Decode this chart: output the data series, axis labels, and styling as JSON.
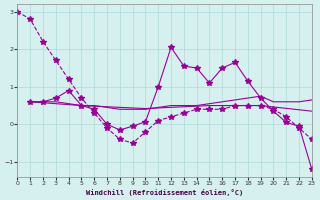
{
  "xlabel": "Windchill (Refroidissement éolien,°C)",
  "background_color": "#d6f0f0",
  "grid_color": "#b0d8d8",
  "line_color": "#990099",
  "xlim": [
    0,
    23
  ],
  "ylim": [
    -1.4,
    3.2
  ],
  "yticks": [
    -1,
    0,
    1,
    2,
    3
  ],
  "xticks": [
    0,
    1,
    2,
    3,
    4,
    5,
    6,
    7,
    8,
    9,
    10,
    11,
    12,
    13,
    14,
    15,
    16,
    17,
    18,
    19,
    20,
    21,
    22,
    23
  ],
  "series": [
    {
      "x": [
        0,
        1,
        2,
        3,
        4,
        5,
        6,
        7,
        8,
        9,
        10,
        11,
        12,
        13,
        14,
        15,
        16,
        17,
        18,
        19,
        20,
        21,
        22,
        23
      ],
      "y": [
        3.0,
        2.8,
        2.2,
        1.7,
        1.2,
        0.7,
        0.3,
        -0.1,
        -0.4,
        -0.5,
        -0.2,
        0.1,
        0.2,
        0.3,
        0.4,
        0.4,
        0.4,
        0.5,
        0.5,
        0.5,
        0.4,
        0.2,
        -0.1,
        -0.4
      ],
      "style": "--",
      "marker": "*",
      "markersize": 4,
      "has_marker": true
    },
    {
      "x": [
        1,
        2,
        3,
        4,
        5,
        6,
        7,
        8,
        9,
        10,
        11,
        12,
        13,
        14,
        15,
        16,
        17,
        18,
        19,
        20,
        21,
        22,
        23
      ],
      "y": [
        0.6,
        0.6,
        0.7,
        0.9,
        0.5,
        0.4,
        0.0,
        -0.15,
        -0.05,
        0.07,
        1.0,
        2.05,
        1.55,
        1.5,
        1.1,
        1.5,
        1.65,
        1.15,
        0.7,
        0.35,
        0.05,
        -0.05,
        -1.2
      ],
      "style": "-",
      "marker": "*",
      "markersize": 4,
      "has_marker": true
    },
    {
      "x": [
        1,
        2,
        3,
        4,
        5,
        6,
        7,
        8,
        9,
        10,
        11,
        12,
        13,
        14,
        15,
        16,
        17,
        18,
        19,
        20,
        21,
        22,
        23
      ],
      "y": [
        0.6,
        0.6,
        0.6,
        0.55,
        0.5,
        0.5,
        0.45,
        0.4,
        0.4,
        0.4,
        0.45,
        0.5,
        0.5,
        0.5,
        0.55,
        0.6,
        0.65,
        0.7,
        0.75,
        0.6,
        0.6,
        0.6,
        0.65
      ],
      "style": "-",
      "marker": null,
      "markersize": 0,
      "has_marker": false
    },
    {
      "x": [
        1,
        5,
        10,
        15,
        19,
        23
      ],
      "y": [
        0.6,
        0.5,
        0.42,
        0.5,
        0.5,
        0.35
      ],
      "style": "-",
      "marker": null,
      "markersize": 0,
      "has_marker": false
    }
  ]
}
